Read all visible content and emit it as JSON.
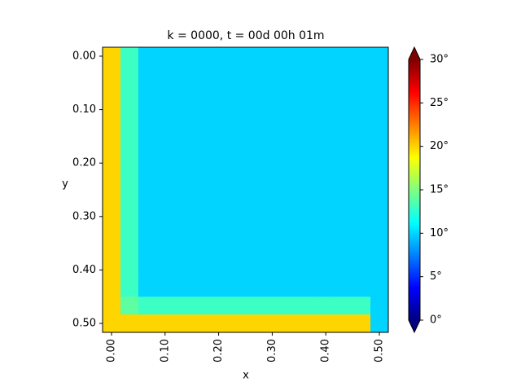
{
  "chart_data": {
    "type": "heatmap",
    "title": "k = 0000, t = 00d 00h 01m",
    "x_label": "x",
    "y_label": "y",
    "x": [
      0,
      0.0333,
      0.0667,
      0.1,
      0.1333,
      0.1667,
      0.2,
      0.2333,
      0.2667,
      0.3,
      0.3333,
      0.3667,
      0.4,
      0.4333,
      0.4667,
      0.5
    ],
    "y": [
      0,
      0.0333,
      0.0667,
      0.1,
      0.1333,
      0.1667,
      0.2,
      0.2333,
      0.2667,
      0.3,
      0.3333,
      0.3667,
      0.4,
      0.4333,
      0.4667,
      0.5
    ],
    "xlim": [
      -0.0167,
      0.5167
    ],
    "ylim": [
      0.5167,
      -0.0167
    ],
    "xticks": [
      {
        "value": 0,
        "label": "0.00"
      },
      {
        "value": 0.1,
        "label": "0.10"
      },
      {
        "value": 0.2,
        "label": "0.20"
      },
      {
        "value": 0.3,
        "label": "0.30"
      },
      {
        "value": 0.4,
        "label": "0.40"
      },
      {
        "value": 0.5,
        "label": "0.50"
      }
    ],
    "yticks": [
      {
        "value": 0,
        "label": "0.00"
      },
      {
        "value": 0.1,
        "label": "0.10"
      },
      {
        "value": 0.2,
        "label": "0.20"
      },
      {
        "value": 0.3,
        "label": "0.30"
      },
      {
        "value": 0.4,
        "label": "0.40"
      },
      {
        "value": 0.5,
        "label": "0.50"
      }
    ],
    "colormap": "jet",
    "clim": [
      0,
      30
    ],
    "cticks": [
      {
        "value": 0,
        "label": "0°"
      },
      {
        "value": 5,
        "label": "5°"
      },
      {
        "value": 10,
        "label": "10°"
      },
      {
        "value": 15,
        "label": "15°"
      },
      {
        "value": 20,
        "label": "20°"
      },
      {
        "value": 25,
        "label": "25°"
      },
      {
        "value": 30,
        "label": "30°"
      }
    ],
    "z": [
      [
        20,
        13,
        10,
        10,
        10,
        10,
        10,
        10,
        10,
        10,
        10,
        10,
        10,
        10,
        10,
        10
      ],
      [
        20,
        13,
        10,
        10,
        10,
        10,
        10,
        10,
        10,
        10,
        10,
        10,
        10,
        10,
        10,
        10
      ],
      [
        20,
        13,
        10,
        10,
        10,
        10,
        10,
        10,
        10,
        10,
        10,
        10,
        10,
        10,
        10,
        10
      ],
      [
        20,
        13,
        10,
        10,
        10,
        10,
        10,
        10,
        10,
        10,
        10,
        10,
        10,
        10,
        10,
        10
      ],
      [
        20,
        13,
        10,
        10,
        10,
        10,
        10,
        10,
        10,
        10,
        10,
        10,
        10,
        10,
        10,
        10
      ],
      [
        20,
        13,
        10,
        10,
        10,
        10,
        10,
        10,
        10,
        10,
        10,
        10,
        10,
        10,
        10,
        10
      ],
      [
        20,
        13,
        10,
        10,
        10,
        10,
        10,
        10,
        10,
        10,
        10,
        10,
        10,
        10,
        10,
        10
      ],
      [
        20,
        13,
        10,
        10,
        10,
        10,
        10,
        10,
        10,
        10,
        10,
        10,
        10,
        10,
        10,
        10
      ],
      [
        20,
        13,
        10,
        10,
        10,
        10,
        10,
        10,
        10,
        10,
        10,
        10,
        10,
        10,
        10,
        10
      ],
      [
        20,
        13,
        10,
        10,
        10,
        10,
        10,
        10,
        10,
        10,
        10,
        10,
        10,
        10,
        10,
        10
      ],
      [
        20,
        13,
        10,
        10,
        10,
        10,
        10,
        10,
        10,
        10,
        10,
        10,
        10,
        10,
        10,
        10
      ],
      [
        20,
        13,
        10,
        10,
        10,
        10,
        10,
        10,
        10,
        10,
        10,
        10,
        10,
        10,
        10,
        10
      ],
      [
        20,
        13,
        10,
        10,
        10,
        10,
        10,
        10,
        10,
        10,
        10,
        10,
        10,
        10,
        10,
        10
      ],
      [
        20,
        13,
        10,
        10,
        10,
        10,
        10,
        10,
        10,
        10,
        10,
        10,
        10,
        10,
        10,
        10
      ],
      [
        20,
        14,
        13,
        13,
        13,
        13,
        13,
        13,
        13,
        13,
        13,
        13,
        13,
        13,
        13,
        10
      ],
      [
        20,
        20,
        20,
        20,
        20,
        20,
        20,
        20,
        20,
        20,
        20,
        20,
        20,
        20,
        20,
        10
      ]
    ]
  }
}
